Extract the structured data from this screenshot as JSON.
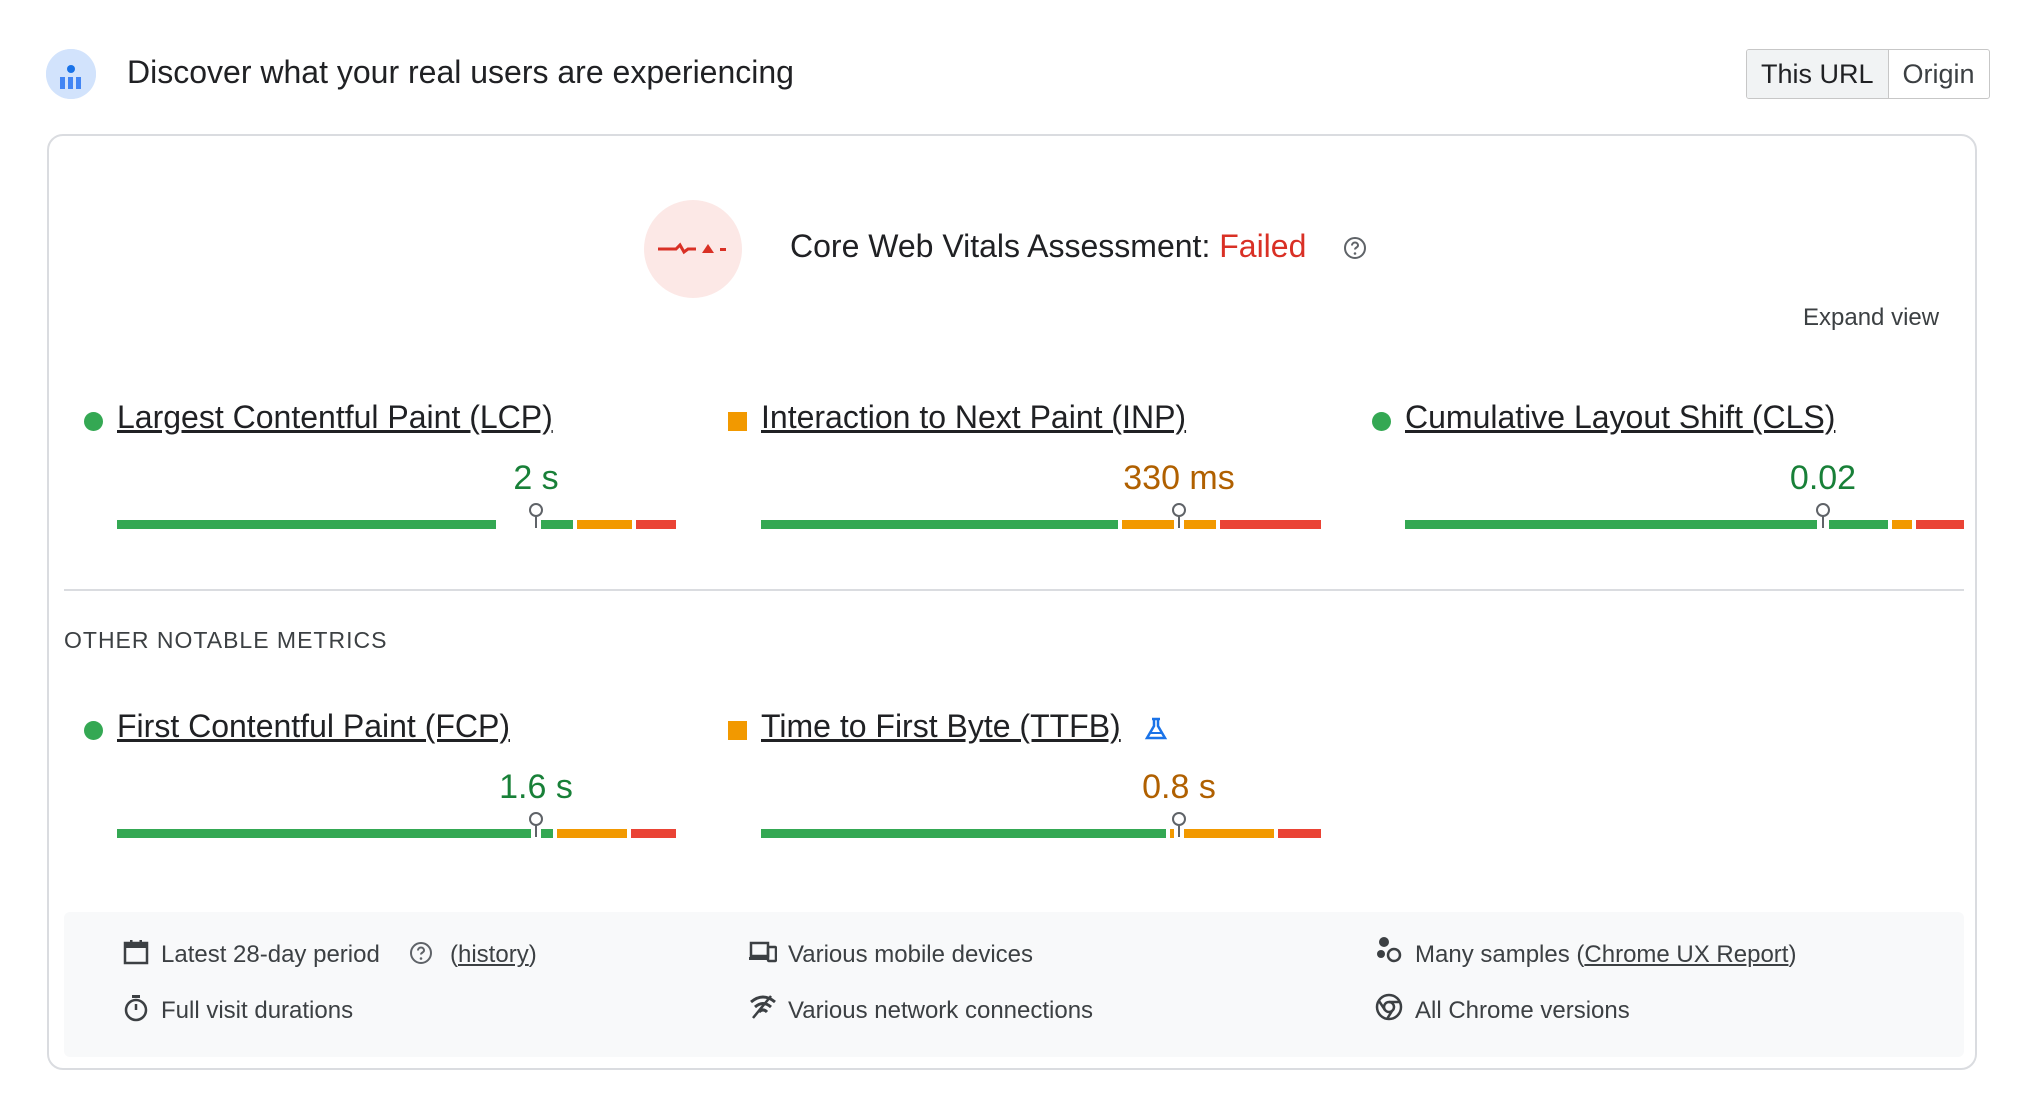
{
  "header": {
    "title": "Discover what your real users are experiencing",
    "toggle": {
      "this_url": "This URL",
      "origin": "Origin",
      "selected": "This URL"
    }
  },
  "assessment": {
    "label": "Core Web Vitals Assessment:",
    "status": "Failed",
    "status_color": "#d93025",
    "expand_label": "Expand view"
  },
  "core_metrics": [
    {
      "name": "Largest Contentful Paint (LCP)",
      "value": "2 s",
      "rating": "good",
      "marker_fraction": 0.75
    },
    {
      "name": "Interaction to Next Paint (INP)",
      "value": "330 ms",
      "rating": "needs-improvement",
      "marker_fraction": 0.75
    },
    {
      "name": "Cumulative Layout Shift (CLS)",
      "value": "0.02",
      "rating": "good",
      "marker_fraction": 0.75
    }
  ],
  "other_heading": "OTHER NOTABLE METRICS",
  "other_metrics": [
    {
      "name": "First Contentful Paint (FCP)",
      "value": "1.6 s",
      "rating": "good",
      "marker_fraction": 0.75
    },
    {
      "name": "Time to First Byte (TTFB)",
      "value": "0.8 s",
      "rating": "needs-improvement",
      "marker_fraction": 0.75,
      "experimental_icon": "flask-icon"
    }
  ],
  "footer": {
    "period": "Latest 28-day period",
    "history_link": "history",
    "devices": "Various mobile devices",
    "samples_prefix": "Many samples (",
    "samples_link": "Chrome UX Report",
    "samples_suffix": ")",
    "durations": "Full visit durations",
    "network": "Various network connections",
    "versions": "All Chrome versions"
  },
  "colors": {
    "good": "#34a853",
    "needs_improvement": "#f29900",
    "poor": "#ea4335",
    "good_text": "#188038",
    "avg_text": "#b06000"
  }
}
